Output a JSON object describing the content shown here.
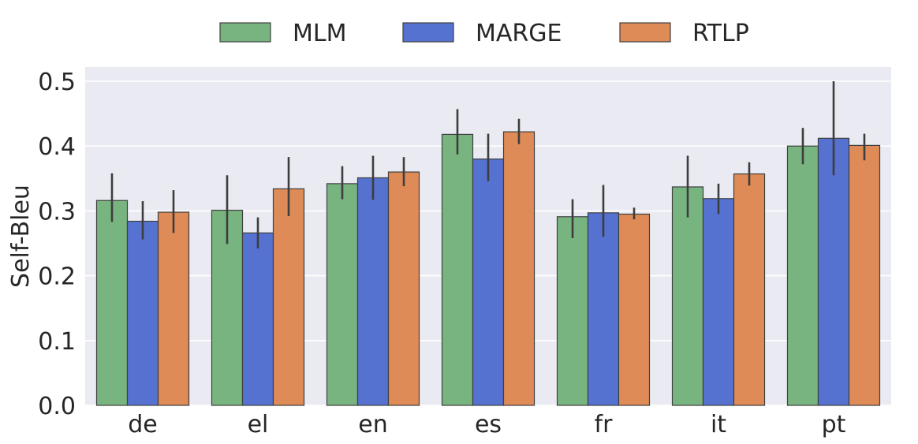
{
  "chart_data": {
    "type": "bar",
    "title": "",
    "xlabel": "",
    "ylabel": "Self-Bleu",
    "ylim": [
      0,
      0.5
    ],
    "yticks": [
      0.0,
      0.1,
      0.2,
      0.3,
      0.4,
      0.5
    ],
    "ytick_labels": [
      "0.0",
      "0.1",
      "0.2",
      "0.3",
      "0.4",
      "0.5"
    ],
    "grid": true,
    "legend_position": "top-center",
    "categories": [
      "de",
      "el",
      "en",
      "es",
      "fr",
      "it",
      "pt"
    ],
    "series": [
      {
        "name": "MLM",
        "color": "#78b47f",
        "values": [
          0.316,
          0.301,
          0.342,
          0.418,
          0.291,
          0.337,
          0.4
        ],
        "err_low": [
          0.283,
          0.249,
          0.318,
          0.387,
          0.258,
          0.29,
          0.372
        ],
        "err_high": [
          0.358,
          0.355,
          0.369,
          0.457,
          0.318,
          0.385,
          0.428
        ]
      },
      {
        "name": "MARGE",
        "color": "#5572d0",
        "values": [
          0.284,
          0.266,
          0.351,
          0.38,
          0.297,
          0.319,
          0.412
        ],
        "err_low": [
          0.256,
          0.242,
          0.317,
          0.346,
          0.26,
          0.295,
          0.355
        ],
        "err_high": [
          0.315,
          0.29,
          0.385,
          0.419,
          0.34,
          0.342,
          0.5
        ]
      },
      {
        "name": "RTLP",
        "color": "#de8b57",
        "values": [
          0.298,
          0.334,
          0.36,
          0.422,
          0.295,
          0.357,
          0.401
        ],
        "err_low": [
          0.266,
          0.292,
          0.338,
          0.403,
          0.287,
          0.339,
          0.378
        ],
        "err_high": [
          0.332,
          0.383,
          0.383,
          0.442,
          0.305,
          0.375,
          0.419
        ]
      }
    ]
  },
  "colors": {
    "plot_background": "#eaeaf2",
    "gridline": "#ffffff",
    "bar_edge": "#3f3f3f",
    "error_bar": "#3d3d3d",
    "text": "#262626"
  }
}
